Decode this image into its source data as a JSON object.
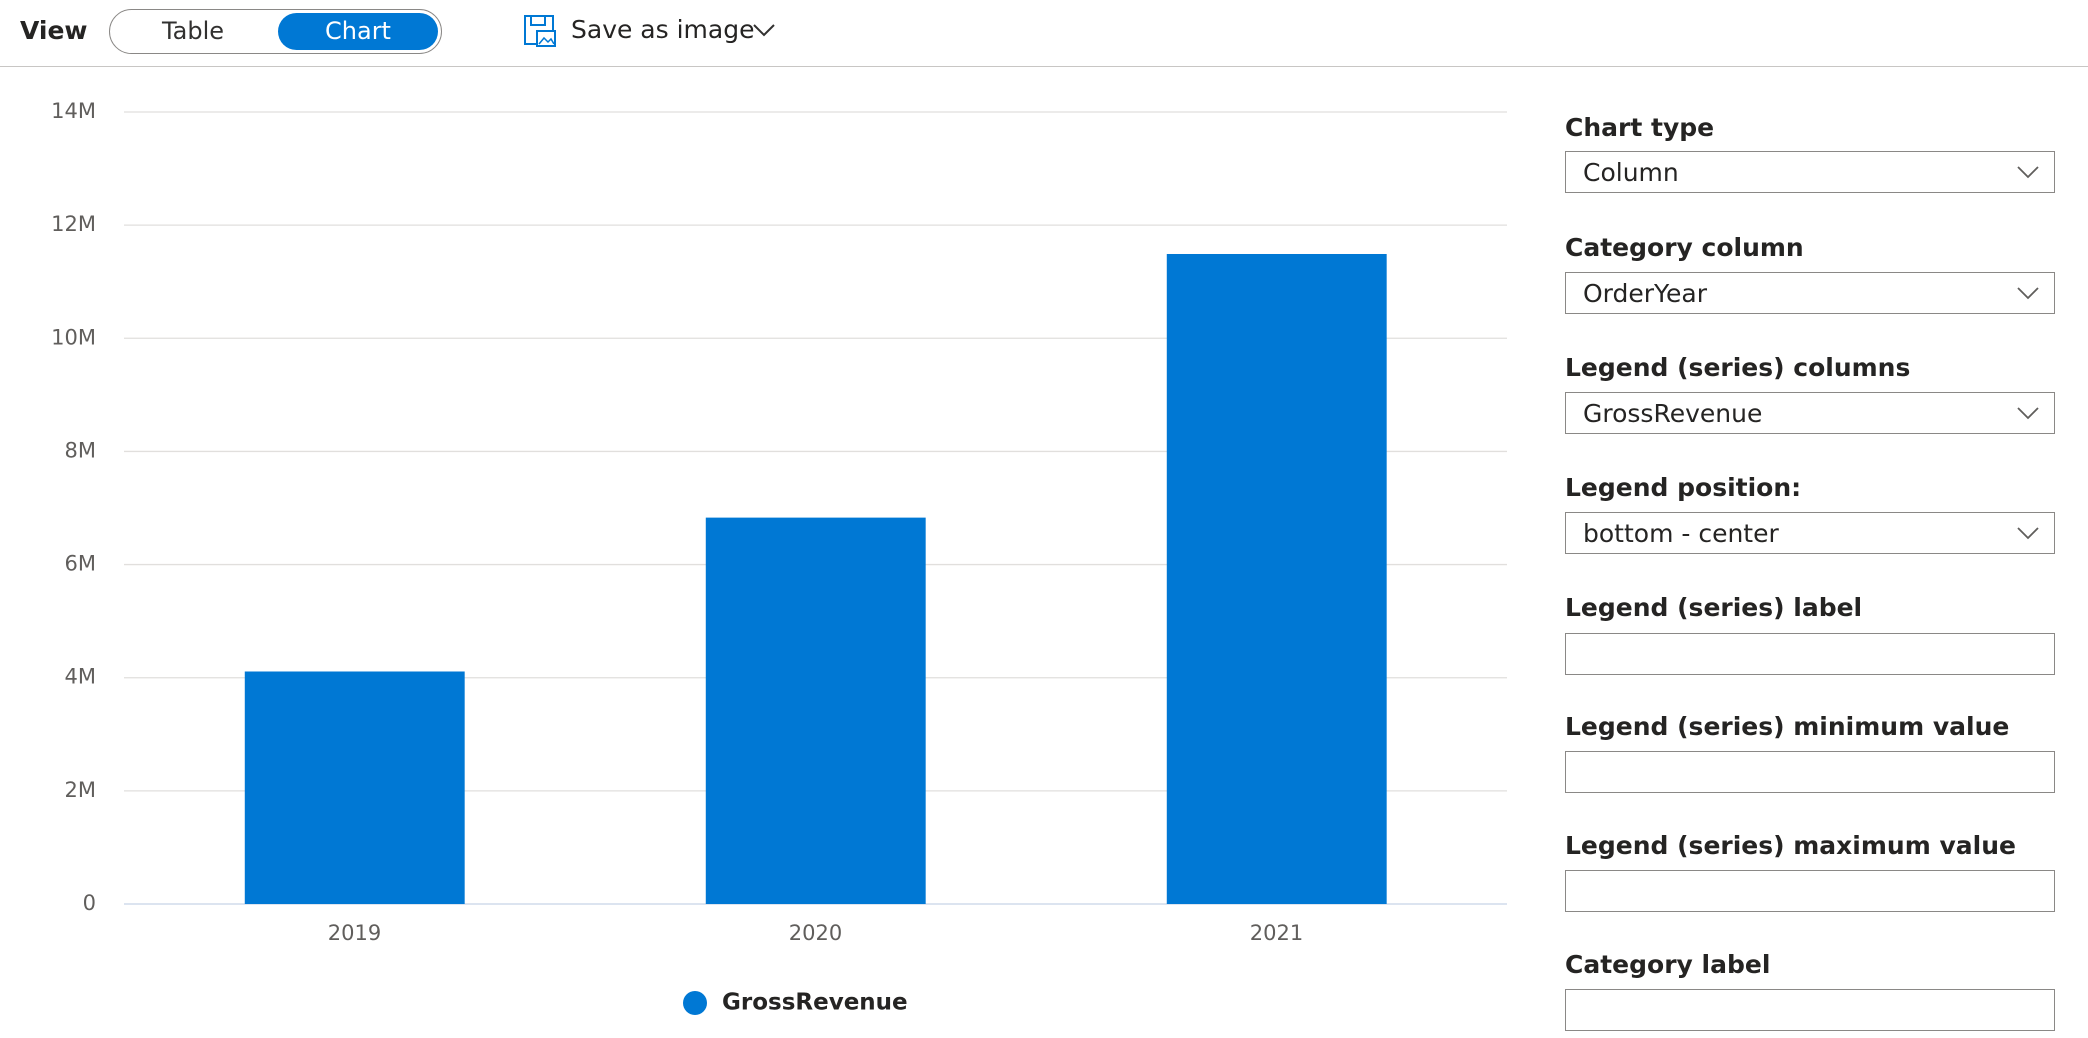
{
  "toolbar": {
    "view_label": "View",
    "toggle": [
      "Table",
      "Chart"
    ],
    "save": "Save as image"
  },
  "settings": {
    "fields": [
      {
        "label": "Chart type",
        "value": "Column"
      },
      {
        "label": "Category column",
        "value": "OrderYear"
      },
      {
        "label": "Legend (series) columns",
        "value": "GrossRevenue"
      },
      {
        "label": "Legend position:",
        "value": "bottom - center"
      },
      {
        "label": "Legend (series) label"
      },
      {
        "label": "Legend (series) minimum value"
      },
      {
        "label": "Legend (series) maximum value"
      },
      {
        "label": "Category label"
      }
    ]
  },
  "chart_data": {
    "type": "bar",
    "categories": [
      "2019",
      "2020",
      "2021"
    ],
    "series": [
      {
        "name": "GrossRevenue",
        "color": "#0078d4",
        "values": [
          4110000,
          6830000,
          11490000
        ]
      }
    ],
    "ylim": [
      0,
      14000000
    ],
    "yticks": [
      0,
      {
        "value": 2000000,
        "label": "2M"
      },
      {
        "value": 4000000,
        "label": "4M"
      },
      {
        "value": 6000000,
        "label": "6M"
      },
      {
        "value": 8000000,
        "label": "8M"
      },
      {
        "value": 10000000,
        "label": "10M"
      },
      {
        "value": 12000000,
        "label": "12M"
      },
      {
        "value": 14000000,
        "label": "14M"
      }
    ],
    "grid": true,
    "legend": "bottom"
  }
}
